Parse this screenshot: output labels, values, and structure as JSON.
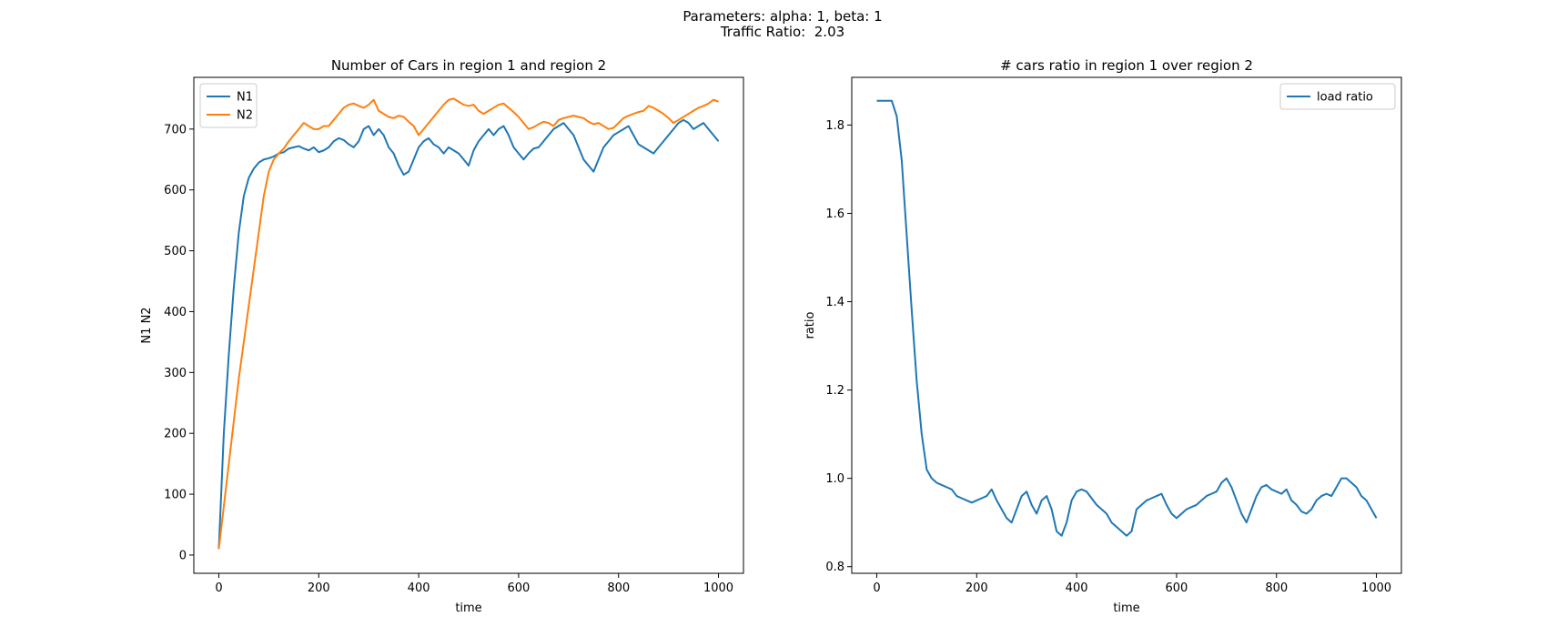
{
  "figure": {
    "suptitle_line1": "Parameters: alpha: 1, beta: 1",
    "suptitle_line2": "Traffic Ratio:  2.03"
  },
  "colors": {
    "blue": "#1f77b4",
    "orange": "#ff7f0e"
  },
  "chart_data": [
    {
      "type": "line",
      "title": "Number of Cars in region 1 and region 2",
      "xlabel": "time",
      "ylabel": "N1 N2",
      "xlim": [
        -50,
        1050
      ],
      "ylim": [
        -30,
        785
      ],
      "xticks": [
        0,
        200,
        400,
        600,
        800,
        1000
      ],
      "yticks": [
        0,
        100,
        200,
        300,
        400,
        500,
        600,
        700
      ],
      "grid": false,
      "legend": "upper-left",
      "series": [
        {
          "name": "N1",
          "color": "#1f77b4",
          "x": [
            0,
            10,
            20,
            30,
            40,
            50,
            60,
            70,
            80,
            90,
            100,
            110,
            120,
            130,
            140,
            150,
            160,
            170,
            180,
            190,
            200,
            210,
            220,
            230,
            240,
            250,
            260,
            270,
            280,
            290,
            300,
            310,
            320,
            330,
            340,
            350,
            360,
            370,
            380,
            390,
            400,
            410,
            420,
            430,
            440,
            450,
            460,
            470,
            480,
            490,
            500,
            510,
            520,
            530,
            540,
            550,
            560,
            570,
            580,
            590,
            600,
            610,
            620,
            630,
            640,
            650,
            660,
            670,
            680,
            690,
            700,
            710,
            720,
            730,
            740,
            750,
            760,
            770,
            780,
            790,
            800,
            810,
            820,
            830,
            840,
            850,
            860,
            870,
            880,
            890,
            900,
            910,
            920,
            930,
            940,
            950,
            960,
            970,
            980,
            990,
            1000
          ],
          "values": [
            10,
            200,
            330,
            440,
            530,
            590,
            620,
            635,
            645,
            650,
            652,
            655,
            660,
            662,
            668,
            670,
            672,
            668,
            665,
            670,
            662,
            665,
            670,
            680,
            685,
            682,
            675,
            670,
            680,
            700,
            705,
            690,
            700,
            690,
            670,
            660,
            640,
            625,
            630,
            650,
            670,
            680,
            685,
            675,
            670,
            660,
            670,
            665,
            660,
            650,
            640,
            665,
            680,
            690,
            700,
            690,
            700,
            705,
            690,
            670,
            660,
            650,
            660,
            668,
            670,
            680,
            690,
            700,
            705,
            710,
            700,
            690,
            670,
            650,
            640,
            630,
            650,
            670,
            680,
            690,
            695,
            700,
            705,
            690,
            675,
            670,
            665,
            660,
            670,
            680,
            690,
            700,
            710,
            715,
            710,
            700,
            705,
            710,
            700,
            690,
            680
          ]
        },
        {
          "name": "N2",
          "color": "#ff7f0e",
          "x": [
            0,
            10,
            20,
            30,
            40,
            50,
            60,
            70,
            80,
            90,
            100,
            110,
            120,
            130,
            140,
            150,
            160,
            170,
            180,
            190,
            200,
            210,
            220,
            230,
            240,
            250,
            260,
            270,
            280,
            290,
            300,
            310,
            320,
            330,
            340,
            350,
            360,
            370,
            380,
            390,
            400,
            410,
            420,
            430,
            440,
            450,
            460,
            470,
            480,
            490,
            500,
            510,
            520,
            530,
            540,
            550,
            560,
            570,
            580,
            590,
            600,
            610,
            620,
            630,
            640,
            650,
            660,
            670,
            680,
            690,
            700,
            710,
            720,
            730,
            740,
            750,
            760,
            770,
            780,
            790,
            800,
            810,
            820,
            830,
            840,
            850,
            860,
            870,
            880,
            890,
            900,
            910,
            920,
            930,
            940,
            950,
            960,
            970,
            980,
            990,
            1000
          ],
          "values": [
            10,
            80,
            150,
            220,
            290,
            350,
            410,
            470,
            530,
            590,
            630,
            650,
            660,
            668,
            680,
            690,
            700,
            710,
            705,
            700,
            700,
            705,
            705,
            715,
            725,
            735,
            740,
            742,
            738,
            735,
            740,
            748,
            730,
            725,
            720,
            718,
            722,
            720,
            712,
            705,
            690,
            700,
            710,
            720,
            730,
            740,
            748,
            750,
            745,
            740,
            738,
            740,
            730,
            725,
            730,
            735,
            740,
            742,
            735,
            728,
            720,
            710,
            700,
            703,
            708,
            712,
            710,
            705,
            715,
            718,
            720,
            722,
            720,
            718,
            712,
            708,
            710,
            705,
            700,
            702,
            710,
            718,
            722,
            725,
            728,
            730,
            738,
            735,
            730,
            725,
            718,
            710,
            715,
            720,
            725,
            730,
            735,
            738,
            742,
            748,
            745
          ]
        }
      ]
    },
    {
      "type": "line",
      "title": "# cars ratio in region 1 over region 2",
      "xlabel": "time",
      "ylabel": "ratio",
      "xlim": [
        -50,
        1050
      ],
      "ylim": [
        0.785,
        1.908
      ],
      "xticks": [
        0,
        200,
        400,
        600,
        800,
        1000
      ],
      "yticks": [
        0.8,
        1.0,
        1.2,
        1.4,
        1.6,
        1.8
      ],
      "grid": false,
      "legend": "upper-right",
      "series": [
        {
          "name": "load ratio",
          "color": "#1f77b4",
          "x": [
            0,
            10,
            20,
            30,
            40,
            50,
            60,
            70,
            80,
            90,
            100,
            110,
            120,
            130,
            140,
            150,
            160,
            170,
            180,
            190,
            200,
            210,
            220,
            230,
            240,
            250,
            260,
            270,
            280,
            290,
            300,
            310,
            320,
            330,
            340,
            350,
            360,
            370,
            380,
            390,
            400,
            410,
            420,
            430,
            440,
            450,
            460,
            470,
            480,
            490,
            500,
            510,
            520,
            530,
            540,
            550,
            560,
            570,
            580,
            590,
            600,
            610,
            620,
            630,
            640,
            650,
            660,
            670,
            680,
            690,
            700,
            710,
            720,
            730,
            740,
            750,
            760,
            770,
            780,
            790,
            800,
            810,
            820,
            830,
            840,
            850,
            860,
            870,
            880,
            890,
            900,
            910,
            920,
            930,
            940,
            950,
            960,
            970,
            980,
            990,
            1000
          ],
          "values": [
            1.855,
            1.855,
            1.855,
            1.855,
            1.82,
            1.72,
            1.55,
            1.38,
            1.22,
            1.1,
            1.02,
            1.0,
            0.99,
            0.985,
            0.98,
            0.975,
            0.96,
            0.955,
            0.95,
            0.945,
            0.95,
            0.955,
            0.96,
            0.975,
            0.95,
            0.93,
            0.91,
            0.9,
            0.93,
            0.96,
            0.97,
            0.94,
            0.92,
            0.95,
            0.96,
            0.93,
            0.88,
            0.87,
            0.9,
            0.95,
            0.97,
            0.975,
            0.97,
            0.955,
            0.94,
            0.93,
            0.92,
            0.9,
            0.89,
            0.88,
            0.87,
            0.88,
            0.93,
            0.94,
            0.95,
            0.955,
            0.96,
            0.965,
            0.94,
            0.92,
            0.91,
            0.92,
            0.93,
            0.935,
            0.94,
            0.95,
            0.96,
            0.965,
            0.97,
            0.99,
            1.0,
            0.98,
            0.95,
            0.92,
            0.9,
            0.93,
            0.96,
            0.98,
            0.985,
            0.975,
            0.97,
            0.965,
            0.975,
            0.95,
            0.94,
            0.925,
            0.92,
            0.93,
            0.95,
            0.96,
            0.965,
            0.96,
            0.98,
            1.0,
            1.0,
            0.99,
            0.98,
            0.96,
            0.95,
            0.93,
            0.91
          ]
        }
      ]
    }
  ]
}
